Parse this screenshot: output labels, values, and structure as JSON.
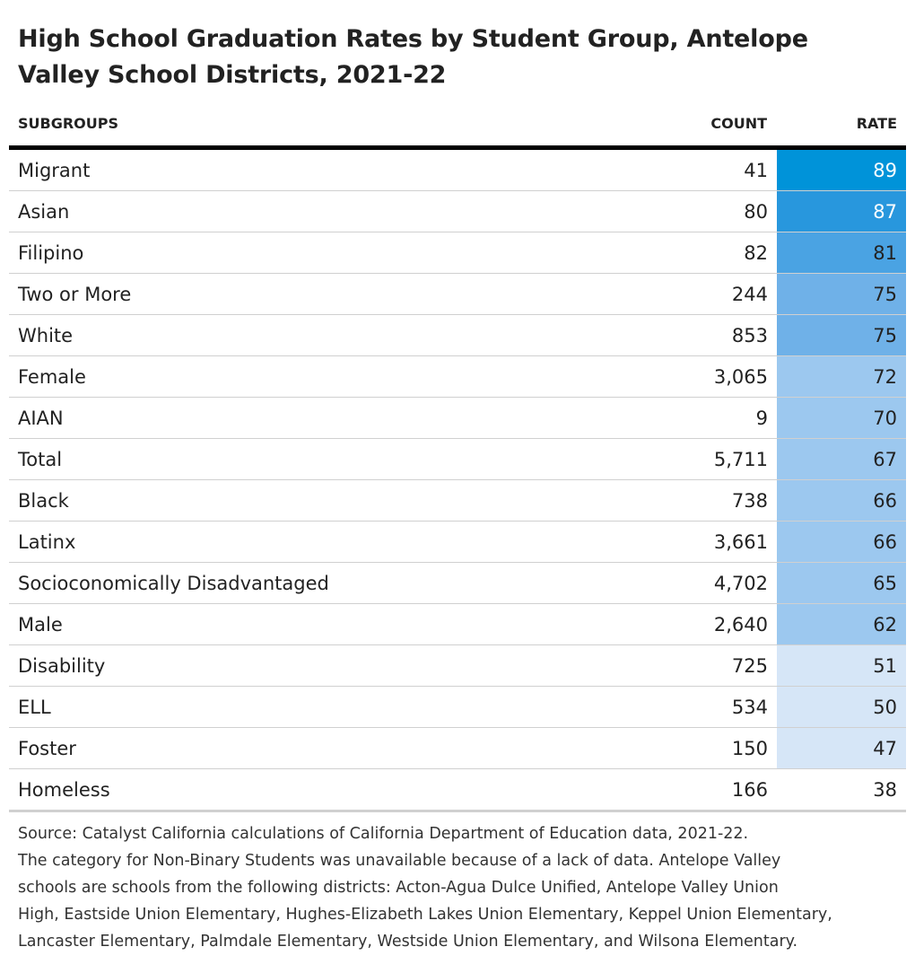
{
  "title": "High School Graduation Rates by Student Group, Antelope Valley School Districts, 2021-22",
  "headers": {
    "subgroup": "SUBGROUPS",
    "count": "COUNT",
    "rate": "RATE"
  },
  "colors": {
    "rate_scale": [
      "#ffffff",
      "#d6e6f7",
      "#9cc8ef",
      "#6fb1e8",
      "#4aa3e3",
      "#2897dd",
      "#0093d9"
    ]
  },
  "chart_data": {
    "type": "table",
    "title": "High School Graduation Rates by Student Group, Antelope Valley School Districts, 2021-22",
    "columns": [
      "SUBGROUPS",
      "COUNT",
      "RATE"
    ],
    "rows": [
      {
        "subgroup": "Migrant",
        "count": "41",
        "rate": 89
      },
      {
        "subgroup": "Asian",
        "count": "80",
        "rate": 87
      },
      {
        "subgroup": "Filipino",
        "count": "82",
        "rate": 81
      },
      {
        "subgroup": "Two or More",
        "count": "244",
        "rate": 75
      },
      {
        "subgroup": "White",
        "count": "853",
        "rate": 75
      },
      {
        "subgroup": "Female",
        "count": "3,065",
        "rate": 72
      },
      {
        "subgroup": "AIAN",
        "count": "9",
        "rate": 70
      },
      {
        "subgroup": "Total",
        "count": "5,711",
        "rate": 67
      },
      {
        "subgroup": "Black",
        "count": "738",
        "rate": 66
      },
      {
        "subgroup": "Latinx",
        "count": "3,661",
        "rate": 66
      },
      {
        "subgroup": "Socioconomically Disadvantaged",
        "count": "4,702",
        "rate": 65
      },
      {
        "subgroup": "Male",
        "count": "2,640",
        "rate": 62
      },
      {
        "subgroup": "Disability",
        "count": "725",
        "rate": 51
      },
      {
        "subgroup": "ELL",
        "count": "534",
        "rate": 50
      },
      {
        "subgroup": "Foster",
        "count": "150",
        "rate": 47
      },
      {
        "subgroup": "Homeless",
        "count": "166",
        "rate": 38
      }
    ]
  },
  "source_lines": [
    "Source: Catalyst California calculations of California Department of Education data, 2021-22.",
    "The category for Non-Binary Students was unavailable because of a lack of data. Antelope Valley",
    "schools are schools from the following districts: Acton-Agua Dulce Unified, Antelope Valley Union",
    "High, Eastside Union Elementary, Hughes-Elizabeth Lakes Union Elementary, Keppel Union Elementary,",
    "Lancaster Elementary, Palmdale Elementary, Westside Union Elementary, and Wilsona Elementary."
  ]
}
